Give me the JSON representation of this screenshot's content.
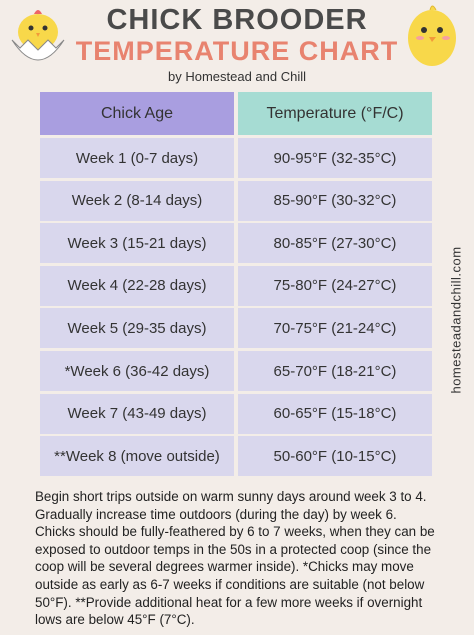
{
  "header": {
    "title": "CHICK BROODER",
    "subtitle": "TEMPERATURE CHART",
    "byline": "by Homestead and Chill"
  },
  "table": {
    "columns": [
      "Chick Age",
      "Temperature (°F/C)"
    ],
    "rows": [
      [
        "Week 1 (0-7 days)",
        "90-95°F (32-35°C)"
      ],
      [
        "Week 2 (8-14 days)",
        "85-90°F (30-32°C)"
      ],
      [
        "Week 3 (15-21 days)",
        "80-85°F (27-30°C)"
      ],
      [
        "Week 4 (22-28 days)",
        "75-80°F (24-27°C)"
      ],
      [
        "Week 5 (29-35 days)",
        "70-75°F (21-24°C)"
      ],
      [
        "*Week 6 (36-42 days)",
        "65-70°F (18-21°C)"
      ],
      [
        "Week 7 (43-49 days)",
        "60-65°F (15-18°C)"
      ],
      [
        "**Week 8 (move outside)",
        "50-60°F (10-15°C)"
      ]
    ]
  },
  "note": "Begin short trips outside on warm sunny days around week 3 to 4. Gradually increase time outdoors (during the day) by week 6. Chicks should be fully-feathered by 6 to 7 weeks, when they can be exposed to outdoor temps in the 50s in a protected coop (since the coop will be several degrees warmer inside). *Chicks may move outside as early as 6-7 weeks if conditions are suitable (not below 50°F). **Provide additional heat for a few more weeks if overnight lows are below 45°F (7°C).",
  "side_text": "homesteadandchill.com"
}
